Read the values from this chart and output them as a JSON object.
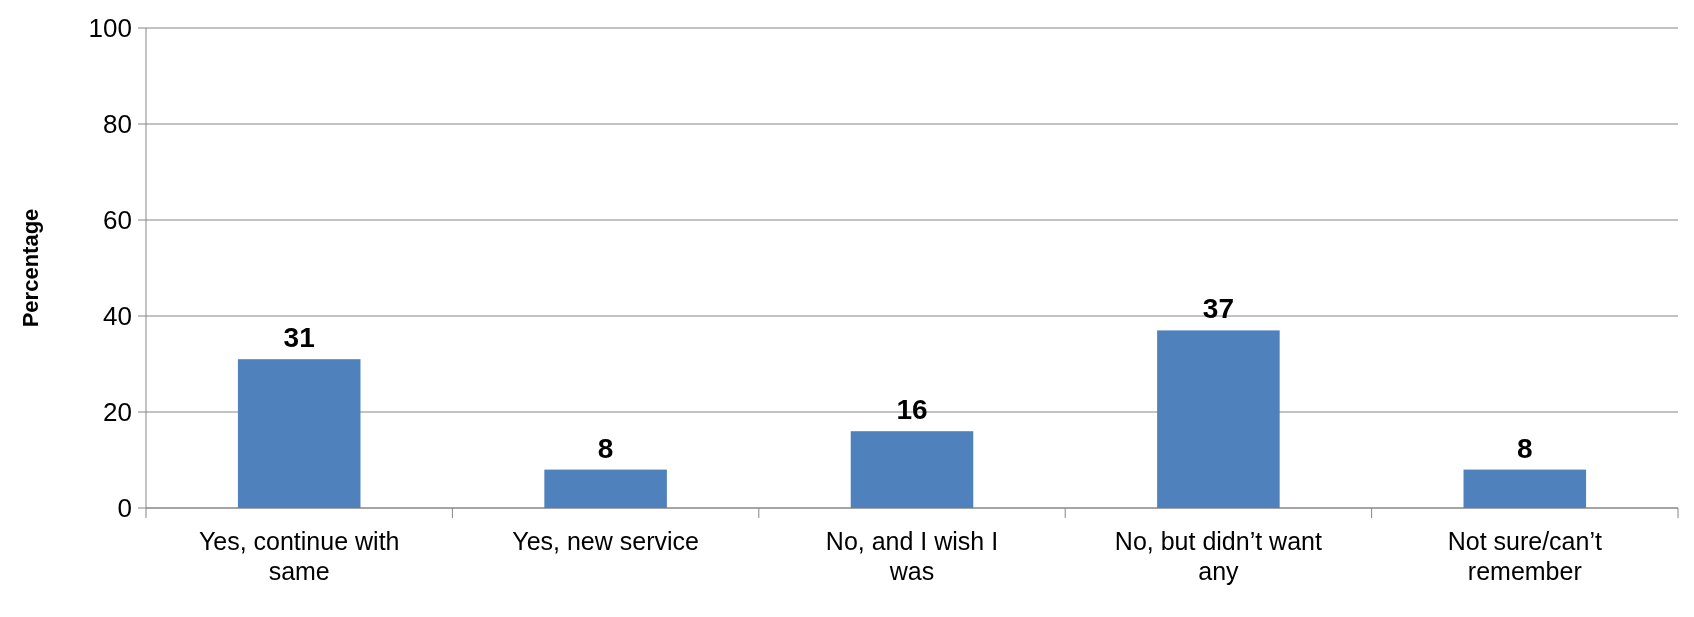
{
  "chart_data": {
    "type": "bar",
    "ylabel": "Percentage",
    "categories": [
      "Yes, continue with same",
      "Yes, new service",
      "No, and I wish I was",
      "No, but didn’t want any",
      "Not sure/can’t remember"
    ],
    "values": [
      31,
      8,
      16,
      37,
      8
    ],
    "color": "#4f81bd",
    "ylim": [
      0,
      100
    ],
    "yticks": [
      0,
      20,
      40,
      60,
      80,
      100
    ],
    "grid": "y",
    "data_labels": true
  }
}
